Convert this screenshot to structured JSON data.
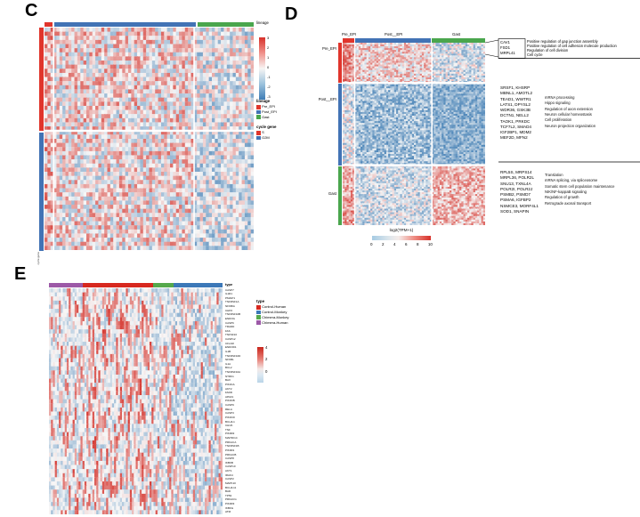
{
  "chart_data": [
    {
      "id": "panel-C",
      "type": "heatmap",
      "panel_label": "C",
      "top_annotation": {
        "label": "lineage",
        "segments": [
          {
            "name": "Pre_EPI",
            "color": "#e0352c"
          },
          {
            "name": "Post_EPI",
            "color": "#4273b5"
          },
          {
            "name": "Gast",
            "color": "#4aa64d"
          }
        ]
      },
      "row_annotation": {
        "label": "cycle gene",
        "segments": [
          {
            "name": "S",
            "color": "#e0352c"
          },
          {
            "name": "G2M",
            "color": "#4273b5"
          }
        ]
      },
      "colorbar": {
        "ticks": [
          "3",
          "2",
          "1",
          "0",
          "-1",
          "-2",
          "-3"
        ]
      },
      "legends": [
        {
          "title": "lineage",
          "items": [
            {
              "label": "Pre_EPI",
              "color": "#e0352c"
            },
            {
              "label": "Post_EPI",
              "color": "#4273b5"
            },
            {
              "label": "Gast",
              "color": "#4aa64d"
            }
          ]
        },
        {
          "title": "cycle gene",
          "items": [
            {
              "label": "S",
              "color": "#e0352c"
            },
            {
              "label": "G2M",
              "color": "#4273b5"
            }
          ]
        }
      ],
      "heatmap": {
        "canvas": "hm-c",
        "rows": 54,
        "cols": 70,
        "seed": 7,
        "domain": [
          -3,
          0,
          3
        ],
        "colGaps": [
          3,
          50
        ],
        "rowGaps": [
          25
        ],
        "blocks": [
          {
            "r": [
              0,
              53
            ],
            "c": [
              0,
              2
            ],
            "mean": 0.9,
            "spread": 1.8
          },
          {
            "r": [
              0,
              24
            ],
            "c": [
              3,
              49
            ],
            "mean": 0.4,
            "spread": 1.9
          },
          {
            "r": [
              0,
              24
            ],
            "c": [
              50,
              69
            ],
            "mean": -0.2,
            "spread": 1.8
          },
          {
            "r": [
              25,
              53
            ],
            "c": [
              3,
              49
            ],
            "mean": 0.35,
            "spread": 1.9
          },
          {
            "r": [
              25,
              53
            ],
            "c": [
              50,
              69
            ],
            "mean": -0.45,
            "spread": 1.7
          }
        ]
      }
    },
    {
      "id": "panel-D",
      "type": "heatmap",
      "panel_label": "D",
      "col_labels": [
        "Pre_EPI",
        "Post__EPI",
        "Gast"
      ],
      "row_labels": [
        "Pre_EPI",
        "Post__EPI",
        "Gast"
      ],
      "top_annotation": {
        "segments": [
          {
            "name": "Pre_EPI",
            "color": "#e0352c"
          },
          {
            "name": "Post__EPI",
            "color": "#4273b5"
          },
          {
            "name": "Gast",
            "color": "#4aa64d"
          }
        ]
      },
      "gene_groups": [
        {
          "genes": [
            "CAV1",
            "FSD1",
            "MRPL41"
          ],
          "terms": [
            "Positive regulation of gap junction assembly",
            "Positive regulation of cell adhesion molecule production",
            "Regulation of cell division",
            "Cell cycle"
          ]
        },
        {
          "genes": [
            "SRSF1, KHSRP",
            "MBNL1, AMOTL2",
            "TEAD1, WWTR1",
            "LATS1, DPYSL2",
            "WDR36, GSK3B",
            "DCTN1, NELL2",
            "TAOK1, PRKDC",
            "TCF7L2, SMAD4",
            "IGF2BP1, MDM2",
            "MEF2D, MFN2"
          ],
          "terms": [
            "mRNA processing",
            "Hippo signaling",
            "Regulation of axon extension",
            "Neuron cellular homeostasis",
            "Cell proliferation",
            "Neuron projection organization"
          ]
        },
        {
          "genes": [
            "RPL5S, MRPS14",
            "MRPL36, POLR2L",
            "SNU13, TXNL4A",
            "POLR2I, POLR2J",
            "PSMB2, PSMD7",
            "PSMA6, IGFBP2",
            "NSMCE3, MORF4L1",
            "SOD1, SNAPIN"
          ],
          "terms": [
            "Translation",
            "mRNA splicing, via spliceosome",
            "Somatic stem cell population maintenance",
            "NIK/NF-kappaB signaling",
            "Regulation of growth",
            "Retrograde axonal transport"
          ]
        }
      ],
      "colorbar": {
        "label": "log2(TPM+1)",
        "ticks": [
          "0",
          "2",
          "4",
          "6",
          "8",
          "10"
        ]
      },
      "heatmap": {
        "canvas": "hm-d",
        "rows": 100,
        "cols": 72,
        "seed": 13,
        "domain": [
          -3,
          0,
          3
        ],
        "colGaps": [
          6,
          45
        ],
        "rowGaps": [
          22,
          67
        ],
        "blocks": [
          {
            "r": [
              0,
              21
            ],
            "c": [
              0,
              5
            ],
            "mean": 1.7,
            "spread": 1.2
          },
          {
            "r": [
              0,
              21
            ],
            "c": [
              6,
              44
            ],
            "mean": 0.55,
            "spread": 1.5
          },
          {
            "r": [
              0,
              21
            ],
            "c": [
              45,
              71
            ],
            "mean": -0.5,
            "spread": 1.5
          },
          {
            "r": [
              22,
              66
            ],
            "c": [
              0,
              5
            ],
            "mean": -0.4,
            "spread": 1.6
          },
          {
            "r": [
              22,
              66
            ],
            "c": [
              6,
              44
            ],
            "mean": -1.4,
            "spread": 1.3
          },
          {
            "r": [
              22,
              66
            ],
            "c": [
              45,
              71
            ],
            "mean": -1.7,
            "spread": 1.0
          },
          {
            "r": [
              67,
              99
            ],
            "c": [
              0,
              5
            ],
            "mean": 1.4,
            "spread": 1.3
          },
          {
            "r": [
              67,
              99
            ],
            "c": [
              6,
              44
            ],
            "mean": -0.6,
            "spread": 1.4
          },
          {
            "r": [
              67,
              99
            ],
            "c": [
              45,
              71
            ],
            "mean": 1.0,
            "spread": 1.3
          }
        ]
      }
    },
    {
      "id": "panel-E",
      "type": "heatmap",
      "panel_label": "E",
      "top_annotation": {
        "label": "type",
        "segments": [
          {
            "name": "Chimera-Human",
            "color": "#9c59a7"
          },
          {
            "name": "Control-Human",
            "color": "#d7281f"
          },
          {
            "name": "Chimera-Monkey",
            "color": "#55a94c"
          },
          {
            "name": "Control-Monkey",
            "color": "#3c78b8"
          }
        ]
      },
      "legend": {
        "title": "type",
        "items": [
          {
            "label": "Control-Human",
            "color": "#d7281f"
          },
          {
            "label": "Control-Monkey",
            "color": "#3c78b8"
          },
          {
            "label": "Chimera-Monkey",
            "color": "#55a94c"
          },
          {
            "label": "Chimera-Human",
            "color": "#9c59a7"
          }
        ]
      },
      "colorbar": {
        "ticks": [
          "4",
          "2",
          "0"
        ]
      },
      "row_labels": [
        "CASP7",
        "IL1R1",
        "PMAIP1",
        "TNFRSF1A",
        "NFKBIA",
        "CHP2",
        "TNFRSF10B",
        "ENDOG",
        "CASP6",
        "TRADD",
        "FAS",
        "TNFSF10",
        "CASP12",
        "CFLAR",
        "ENDOD1",
        "IL1B",
        "TNFRSF10D",
        "NFKB1",
        "IL1A",
        "BCL2",
        "TNFRSF10A",
        "NTRK1",
        "BAX",
        "PIK3CA",
        "AKT2",
        "FADD",
        "APAF1",
        "PIK3CB",
        "CASP9",
        "RELA",
        "CASP3",
        "PIK3CD",
        "BCL2L1",
        "CHUK",
        "TNF",
        "PIK3R2",
        "MAP3K14",
        "PRKACA",
        "TNFRSF1B",
        "PIK3R1",
        "PRKACB",
        "CASP8",
        "IKBKB",
        "CASP10",
        "AKT1",
        "IRAK4",
        "CASP2",
        "MAPK10",
        "BCL2L11",
        "BAD",
        "TP53",
        "PRKACG",
        "PIK3R3",
        "IKBKG",
        "ATM"
      ],
      "heatmap": {
        "canvas": "hm-e",
        "rows": 55,
        "cols": 88,
        "seed": 21,
        "domain": [
          -1.2,
          0,
          4
        ],
        "streak": true,
        "blocks": [
          {
            "r": [
              0,
              54
            ],
            "c": [
              0,
              16
            ],
            "mean": -0.1,
            "spread": 0.45,
            "spike": 0.1,
            "spikeVal": [
              1.2,
              4
            ]
          },
          {
            "r": [
              0,
              54
            ],
            "c": [
              17,
              52
            ],
            "mean": -0.05,
            "spread": 0.5,
            "spike": 0.15,
            "spikeVal": [
              1.5,
              4
            ]
          },
          {
            "r": [
              0,
              54
            ],
            "c": [
              53,
              62
            ],
            "mean": -0.15,
            "spread": 0.45,
            "spike": 0.1,
            "spikeVal": [
              1.2,
              3.5
            ]
          },
          {
            "r": [
              0,
              54
            ],
            "c": [
              63,
              87
            ],
            "mean": -0.2,
            "spread": 0.5,
            "spike": 0.08,
            "spikeVal": [
              1.2,
              3.5
            ]
          }
        ]
      }
    }
  ]
}
